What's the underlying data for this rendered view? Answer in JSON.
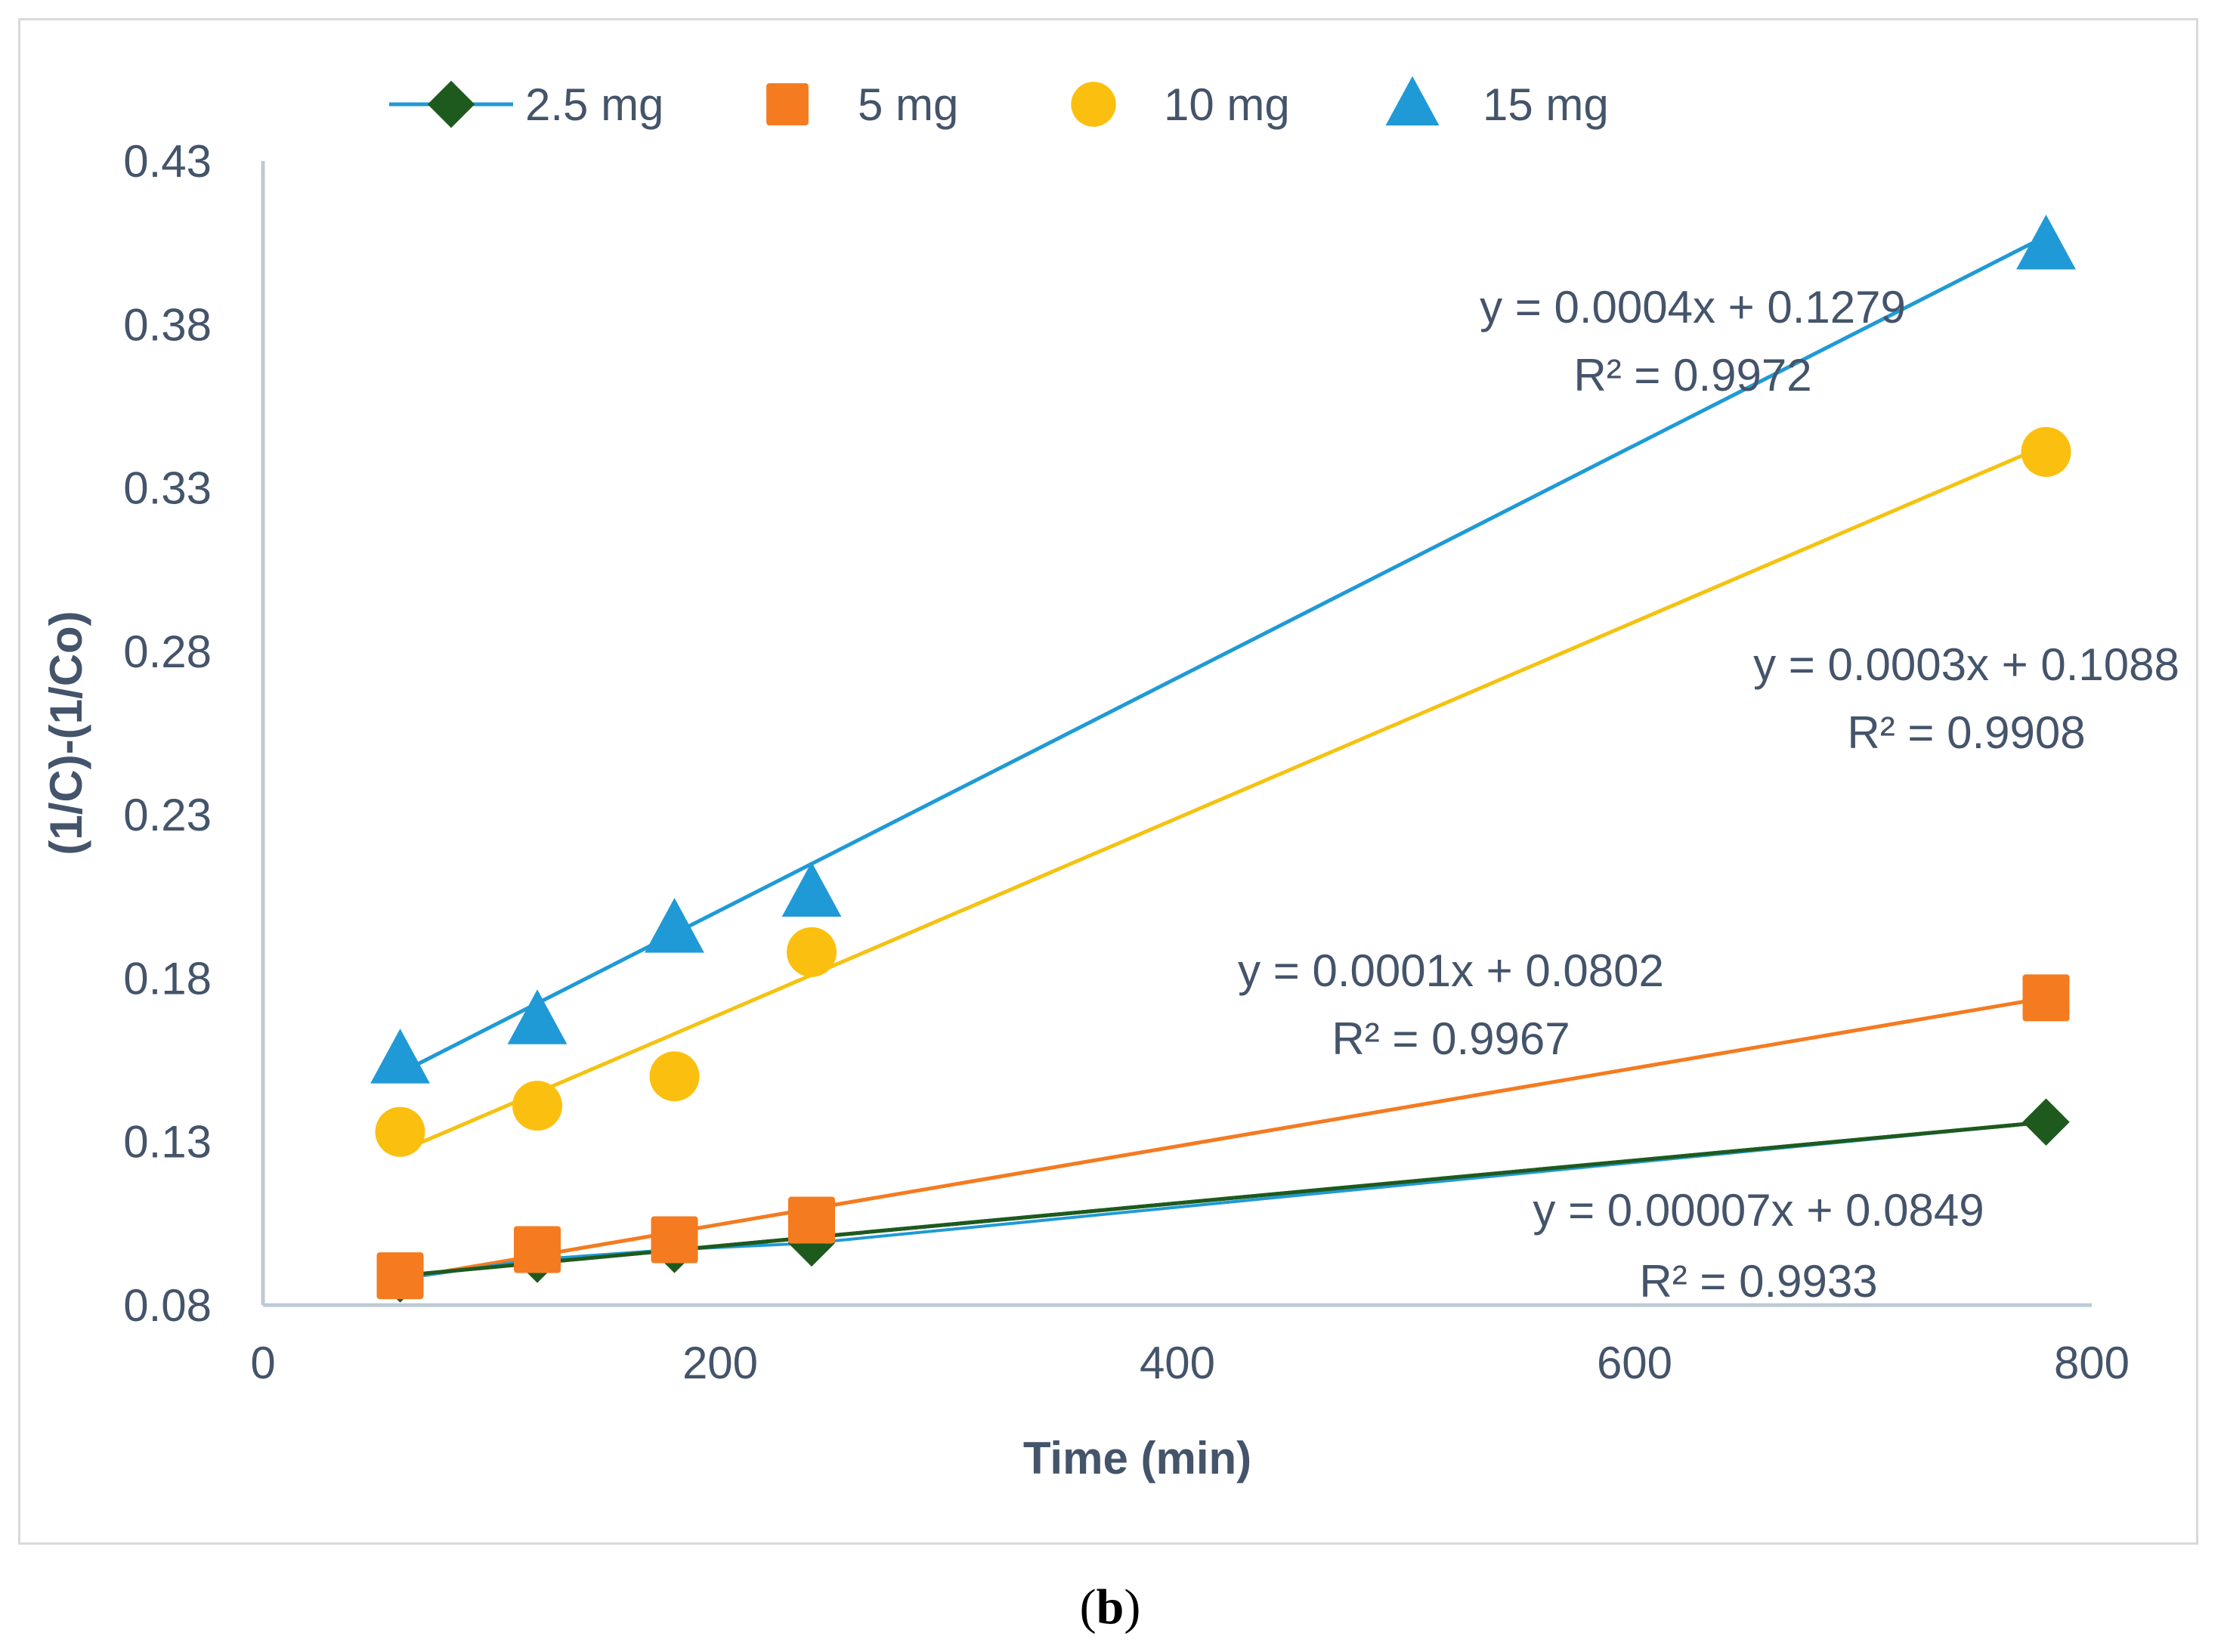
{
  "chart_data": {
    "type": "scatter",
    "xlabel": "Time (min)",
    "ylabel": "(1/C)-(1/Co)",
    "xlim": [
      0,
      800
    ],
    "ylim": [
      0.08,
      0.43
    ],
    "xticks": [
      0,
      200,
      400,
      600,
      800
    ],
    "yticks": [
      0.08,
      0.13,
      0.18,
      0.23,
      0.28,
      0.33,
      0.38,
      0.43
    ],
    "ytick_labels": [
      "0.08",
      "0.13",
      "0.18",
      "0.23",
      "0.28",
      "0.33",
      "0.38",
      "0.43"
    ],
    "legend_position": "top",
    "series": [
      {
        "name": "2.5 mg",
        "marker": "diamond",
        "color": "#1e5a1e",
        "line_color": "#1e5a1e",
        "x": [
          60,
          120,
          180,
          240,
          780
        ],
        "y": [
          0.088,
          0.094,
          0.097,
          0.099,
          0.136
        ],
        "trend": {
          "x": [
            60,
            780
          ],
          "y": [
            0.089,
            0.136
          ]
        },
        "equation": "y = 0.00007x + 0.0849",
        "r2": "R² = 0.9933"
      },
      {
        "name": "5 mg",
        "marker": "square",
        "color": "#f47b20",
        "line_color": "#f47b20",
        "x": [
          60,
          120,
          180,
          240,
          780
        ],
        "y": [
          0.089,
          0.097,
          0.1,
          0.106,
          0.174
        ],
        "trend": {
          "x": [
            60,
            780
          ],
          "y": [
            0.088,
            0.174
          ]
        },
        "equation": "y = 0.0001x + 0.0802",
        "r2": "R² = 0.9967"
      },
      {
        "name": "10 mg",
        "marker": "circle",
        "color": "#fbc00f",
        "line_color": "#f5c211",
        "x": [
          60,
          120,
          180,
          240,
          780
        ],
        "y": [
          0.133,
          0.141,
          0.15,
          0.188,
          0.341
        ],
        "trend": {
          "x": [
            60,
            780
          ],
          "y": [
            0.127,
            0.343
          ]
        },
        "equation": "y = 0.0003x + 0.1088",
        "r2": "R² = 0.9908"
      },
      {
        "name": "15 mg",
        "marker": "triangle",
        "color": "#1f9ad6",
        "line_color": "#1f9ad6",
        "x": [
          60,
          120,
          180,
          240,
          780
        ],
        "y": [
          0.155,
          0.167,
          0.195,
          0.206,
          0.404
        ],
        "trend": {
          "x": [
            60,
            780
          ],
          "y": [
            0.151,
            0.407
          ]
        },
        "equation": "y = 0.0004x + 0.1279",
        "r2": "R² = 0.9972"
      }
    ]
  },
  "caption": {
    "open": "(",
    "letter": "b",
    "close": ")"
  }
}
